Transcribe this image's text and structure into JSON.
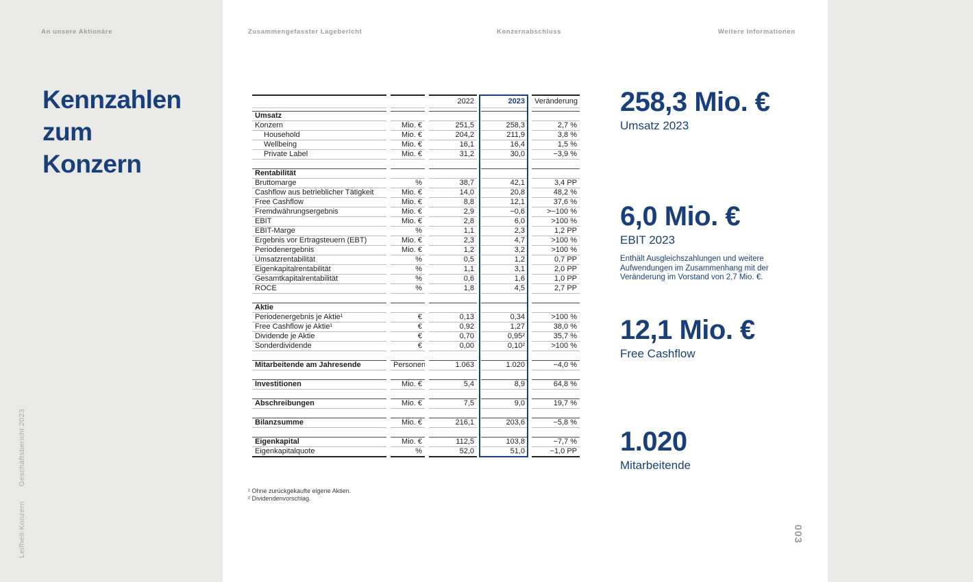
{
  "nav": {
    "items": [
      {
        "label": "An unsere Aktionäre"
      },
      {
        "label": "Zusammengefasster Lagebericht"
      },
      {
        "label": "Konzernabschluss"
      },
      {
        "label": "Weitere Informationen"
      }
    ]
  },
  "title": {
    "lines": [
      "Kennzahlen",
      "zum",
      "Konzern"
    ]
  },
  "table": {
    "headers": {
      "y2022": "2022",
      "y2023": "2023",
      "change": "Veränderung"
    },
    "rows": [
      {
        "type": "minispacer"
      },
      {
        "type": "section",
        "label": "Umsatz"
      },
      {
        "type": "data",
        "label": "Konzern",
        "unit": "Mio. €",
        "v2022": "251,5",
        "v2023": "258,3",
        "chg": "2,7 %"
      },
      {
        "type": "data",
        "indent": true,
        "label": "Household",
        "unit": "Mio. €",
        "v2022": "204,2",
        "v2023": "211,9",
        "chg": "3,8 %"
      },
      {
        "type": "data",
        "indent": true,
        "label": "Wellbeing",
        "unit": "Mio. €",
        "v2022": "16,1",
        "v2023": "16,4",
        "chg": "1,5 %"
      },
      {
        "type": "data",
        "indent": true,
        "label": "Private Label",
        "unit": "Mio. €",
        "v2022": "31,2",
        "v2023": "30,0",
        "chg": "−3,9 %"
      },
      {
        "type": "spacer"
      },
      {
        "type": "section",
        "label": "Rentabilität"
      },
      {
        "type": "data",
        "label": "Bruttomarge",
        "unit": "%",
        "v2022": "38,7",
        "v2023": "42,1",
        "chg": "3,4 PP"
      },
      {
        "type": "data",
        "label": "Cashflow aus betrieblicher Tätigkeit",
        "unit": "Mio. €",
        "v2022": "14,0",
        "v2023": "20,8",
        "chg": "48,2 %"
      },
      {
        "type": "data",
        "label": "Free Cashflow",
        "unit": "Mio. €",
        "v2022": "8,8",
        "v2023": "12,1",
        "chg": "37,6 %"
      },
      {
        "type": "data",
        "label": "Fremdwährungsergebnis",
        "unit": "Mio. €",
        "v2022": "2,9",
        "v2023": "−0,6",
        "chg": ">−100 %"
      },
      {
        "type": "data",
        "label": "EBIT",
        "unit": "Mio. €",
        "v2022": "2,8",
        "v2023": "6,0",
        "chg": ">100 %"
      },
      {
        "type": "data",
        "label": "EBIT-Marge",
        "unit": "%",
        "v2022": "1,1",
        "v2023": "2,3",
        "chg": "1,2 PP"
      },
      {
        "type": "data",
        "label": "Ergebnis vor Ertragsteuern (EBT)",
        "unit": "Mio. €",
        "v2022": "2,3",
        "v2023": "4,7",
        "chg": ">100 %"
      },
      {
        "type": "data",
        "label": "Periodenergebnis",
        "unit": "Mio. €",
        "v2022": "1,2",
        "v2023": "3,2",
        "chg": ">100 %"
      },
      {
        "type": "data",
        "label": "Umsatzrentabilität",
        "unit": "%",
        "v2022": "0,5",
        "v2023": "1,2",
        "chg": "0,7 PP"
      },
      {
        "type": "data",
        "label": "Eigenkapitalrentabilität",
        "unit": "%",
        "v2022": "1,1",
        "v2023": "3,1",
        "chg": "2,0 PP"
      },
      {
        "type": "data",
        "label": "Gesamtkapitalrentabilität",
        "unit": "%",
        "v2022": "0,6",
        "v2023": "1,6",
        "chg": "1,0 PP"
      },
      {
        "type": "data",
        "label": "ROCE",
        "unit": "%",
        "v2022": "1,8",
        "v2023": "4,5",
        "chg": "2,7 PP"
      },
      {
        "type": "spacer"
      },
      {
        "type": "section",
        "label": "Aktie"
      },
      {
        "type": "data",
        "label": "Periodenergebnis je Aktie¹",
        "unit": "€",
        "v2022": "0,13",
        "v2023": "0,34",
        "chg": ">100 %"
      },
      {
        "type": "data",
        "label": "Free Cashflow je Aktie¹",
        "unit": "€",
        "v2022": "0,92",
        "v2023": "1,27",
        "chg": "38,0 %"
      },
      {
        "type": "data",
        "label": "Dividende je Aktie",
        "unit": "€",
        "v2022": "0,70",
        "v2023": "0,95²",
        "chg": "35,7 %"
      },
      {
        "type": "data",
        "label": "Sonderdividende",
        "unit": "€",
        "v2022": "0,00",
        "v2023": "0,10²",
        "chg": ">100 %"
      },
      {
        "type": "spacer"
      },
      {
        "type": "bolddata",
        "label": "Mitarbeitende am Jahresende",
        "unit": "Personen",
        "v2022": "1.063",
        "v2023": "1.020",
        "chg": "−4,0 %"
      },
      {
        "type": "spacer"
      },
      {
        "type": "bolddata",
        "label": "Investitionen",
        "unit": "Mio. €",
        "v2022": "5,4",
        "v2023": "8,9",
        "chg": "64,8 %"
      },
      {
        "type": "spacer"
      },
      {
        "type": "bolddata",
        "label": "Abschreibungen",
        "unit": "Mio. €",
        "v2022": "7,5",
        "v2023": "9,0",
        "chg": "19,7 %"
      },
      {
        "type": "spacer"
      },
      {
        "type": "bolddata",
        "label": "Bilanzsumme",
        "unit": "Mio. €",
        "v2022": "216,1",
        "v2023": "203,6",
        "chg": "−5,8 %"
      },
      {
        "type": "spacer"
      },
      {
        "type": "bolddata",
        "label": "Eigenkapital",
        "unit": "Mio. €",
        "v2022": "112,5",
        "v2023": "103,8",
        "chg": "−7,7 %"
      },
      {
        "type": "data",
        "label": "Eigenkapitalquote",
        "unit": "%",
        "v2022": "52,0",
        "v2023": "51,0",
        "chg": "−1,0 PP"
      }
    ],
    "footnotes": [
      "¹ Ohne zurückgekaufte eigene Aktien.",
      "² Dividendenvorschlag."
    ]
  },
  "highlights": [
    {
      "value": "258,3 Mio. €",
      "label": "Umsatz 2023",
      "note": ""
    },
    {
      "value": "6,0 Mio. €",
      "label": "EBIT 2023",
      "note": "Enthält Ausgleichszahlungen und weitere Aufwendungen im Zusammenhang mit der Veränderung im Vorstand von 2,7 Mio. €."
    },
    {
      "value": "12,1 Mio. €",
      "label": "Free Cashflow",
      "note": ""
    },
    {
      "value": "1.020",
      "label": "Mitarbeitende",
      "note": ""
    }
  ],
  "sidebar": {
    "top_text": "Geschäftsbericht 2023",
    "bottom_text": "Leifheit-Konzern"
  },
  "page_number": "003",
  "colors": {
    "brand_navy": "#193f7a",
    "background_gray": "#e9e9e7",
    "rule_gray": "#bcbcba",
    "rule_dark": "#222220",
    "muted_text": "#9c9c9a"
  }
}
